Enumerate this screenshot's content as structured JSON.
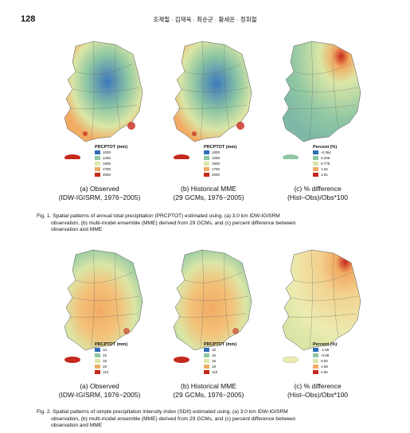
{
  "header": {
    "page_number": "128",
    "authors": "조재필 · 김재욱 · 최순군 · 황세운 · 정휘철"
  },
  "figures": [
    {
      "panels": [
        {
          "caption_line1": "(a) Observed",
          "caption_line2": "(IDW-IGISRM, 1976~2005)",
          "legend_title": "PRCPTOT (mm)",
          "legend_items": [
            {
              "label": "1000",
              "color": "#2f6eb5"
            },
            {
              "label": "1250",
              "color": "#8fc7a3"
            },
            {
              "label": "1500",
              "color": "#dbe6a6"
            },
            {
              "label": "1750",
              "color": "#f2ab63"
            },
            {
              "label": "2000",
              "color": "#c5281c"
            }
          ]
        },
        {
          "caption_line1": "(b) Historical MME",
          "caption_line2": "(29 GCMs, 1976~2005)",
          "legend_title": "PRCPTOT (mm)",
          "legend_items": [
            {
              "label": "1000",
              "color": "#2f6eb5"
            },
            {
              "label": "1250",
              "color": "#8fc7a3"
            },
            {
              "label": "1500",
              "color": "#dbe6a6"
            },
            {
              "label": "1750",
              "color": "#f2ab63"
            },
            {
              "label": "2000",
              "color": "#c5281c"
            }
          ]
        },
        {
          "caption_line1": "(c) % difference",
          "caption_line2": "(Hist–Obs)/Obs*100",
          "legend_title": "Percent (%)",
          "legend_items": [
            {
              "label": "-0.364",
              "color": "#2f6eb5"
            },
            {
              "label": "0.206",
              "color": "#8fc7a3"
            },
            {
              "label": "0.775",
              "color": "#dbe6a6"
            },
            {
              "label": "1.34",
              "color": "#f2ab63"
            },
            {
              "label": "1.91",
              "color": "#c5281c"
            }
          ]
        }
      ],
      "caption_line1": "Fig. 1. Spatial patterns of annual total precipitation (PRCPTOT) estimated using. (a) 3.0 km IDW-IGISRM",
      "caption_line2": "observation, (b) multi-model ensemble (MME) derived from 29 GCMs, and (c) percent difference between",
      "caption_line3": "observation and MME"
    },
    {
      "panels": [
        {
          "caption_line1": "(a) Observed",
          "caption_line2": "(IDW-IGISRM, 1976~2005)",
          "legend_title": "PRCPTOT (mm)",
          "legend_items": [
            {
              "label": "10",
              "color": "#2f6eb5"
            },
            {
              "label": "15",
              "color": "#8fc7a3"
            },
            {
              "label": "16",
              "color": "#dbe6a6"
            },
            {
              "label": "19",
              "color": "#f2ab63"
            },
            {
              "label": "110",
              "color": "#c5281c"
            }
          ]
        },
        {
          "caption_line1": "(b) Historical MME",
          "caption_line2": "(29 GCMs, 1976~2005)",
          "legend_title": "PRCPTOT (mm)",
          "legend_items": [
            {
              "label": "10",
              "color": "#2f6eb5"
            },
            {
              "label": "15",
              "color": "#8fc7a3"
            },
            {
              "label": "16",
              "color": "#dbe6a6"
            },
            {
              "label": "19",
              "color": "#f2ab63"
            },
            {
              "label": "110",
              "color": "#c5281c"
            }
          ]
        },
        {
          "caption_line1": "(c) % difference",
          "caption_line2": "(Hist–Obs)/Obs*100",
          "legend_title": "Percent (%)",
          "legend_items": [
            {
              "label": "-1.66",
              "color": "#2f6eb5"
            },
            {
              "label": "-0.58",
              "color": "#8fc7a3"
            },
            {
              "label": "0.50",
              "color": "#dbe6a6"
            },
            {
              "label": "1.58",
              "color": "#f2ab63"
            },
            {
              "label": "2.66",
              "color": "#c5281c"
            }
          ]
        }
      ],
      "caption_line1": "Fig. 2. Spatial patterns of simple precipitation intensity index (SDII) estimated using. (a) 3.0 km IDW-IGISRM",
      "caption_line2": "observation, (b) multi-model ensemble (MME) derived from 29 GCMs, and (c) percent difference between",
      "caption_line3": "observation and MME"
    }
  ]
}
